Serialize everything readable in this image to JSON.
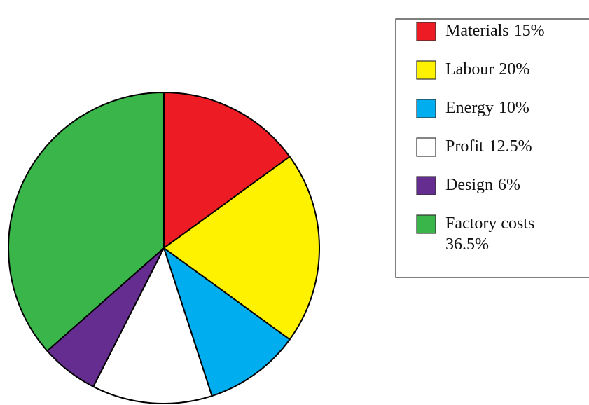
{
  "chart_data": {
    "type": "pie",
    "categories": [
      "Materials",
      "Labour",
      "Energy",
      "Profit",
      "Design",
      "Factory costs"
    ],
    "values": [
      15,
      20,
      10,
      12.5,
      6,
      36.5
    ],
    "value_labels": [
      "15%",
      "20%",
      "10%",
      "12.5%",
      "6%",
      "36.5%"
    ],
    "colors": [
      "#ed1c24",
      "#fff200",
      "#00aeef",
      "#ffffff",
      "#662d91",
      "#39b54a"
    ]
  }
}
